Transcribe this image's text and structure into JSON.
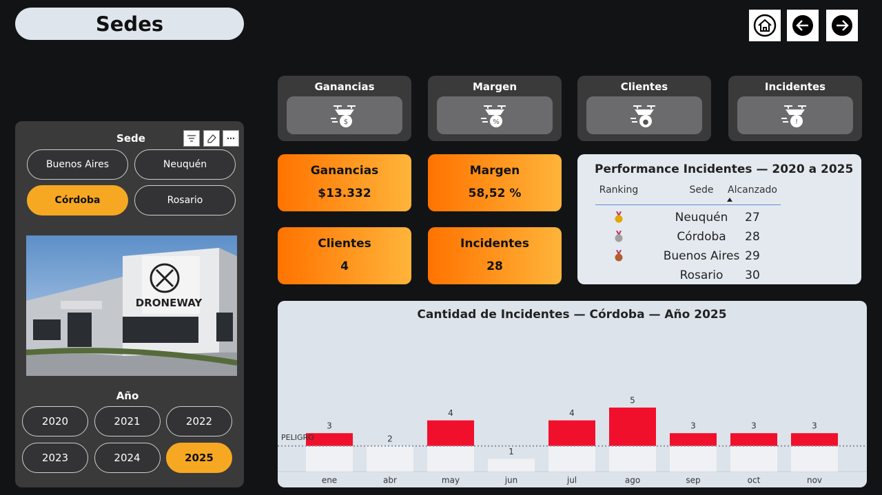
{
  "header": {
    "title": "Sedes"
  },
  "sede_slicer": {
    "title": "Sede",
    "options": [
      "Buenos Aires",
      "Neuquén",
      "Córdoba",
      "Rosario"
    ],
    "selected": 2
  },
  "sede_image": {
    "sign_text": "DRONEWAY"
  },
  "year_slicer": {
    "title": "Año",
    "options": [
      "2020",
      "2021",
      "2022",
      "2023",
      "2024",
      "2025"
    ],
    "selected": 5
  },
  "kpi_icon_cards": [
    "Ganancias",
    "Margen",
    "Clientes",
    "Incidentes"
  ],
  "kpi_cards": [
    {
      "label": "Ganancias",
      "value": "$13.332"
    },
    {
      "label": "Margen",
      "value": "58,52 %"
    },
    {
      "label": "Clientes",
      "value": "4"
    },
    {
      "label": "Incidentes",
      "value": "28"
    }
  ],
  "ranking_table": {
    "title": "Performance Incidentes — 2020 a 2025",
    "columns": [
      "Ranking",
      "Sede",
      "Alcanzado"
    ],
    "rows": [
      [
        "Neuquén",
        "27"
      ],
      [
        "Córdoba",
        "28"
      ],
      [
        "Buenos Aires",
        "29"
      ],
      [
        "Rosario",
        "30"
      ]
    ]
  },
  "chart_data": {
    "type": "bar",
    "title": "Cantidad de Incidentes — Córdoba — Año 2025",
    "categories": [
      "ene",
      "abr",
      "may",
      "jun",
      "jul",
      "ago",
      "sep",
      "oct",
      "nov"
    ],
    "values": [
      3,
      2,
      4,
      1,
      4,
      5,
      3,
      3,
      3
    ],
    "color": "#f0102c",
    "base_color": "#eff1f5",
    "threshold": {
      "label": "PELIGRO",
      "value": 2
    }
  }
}
